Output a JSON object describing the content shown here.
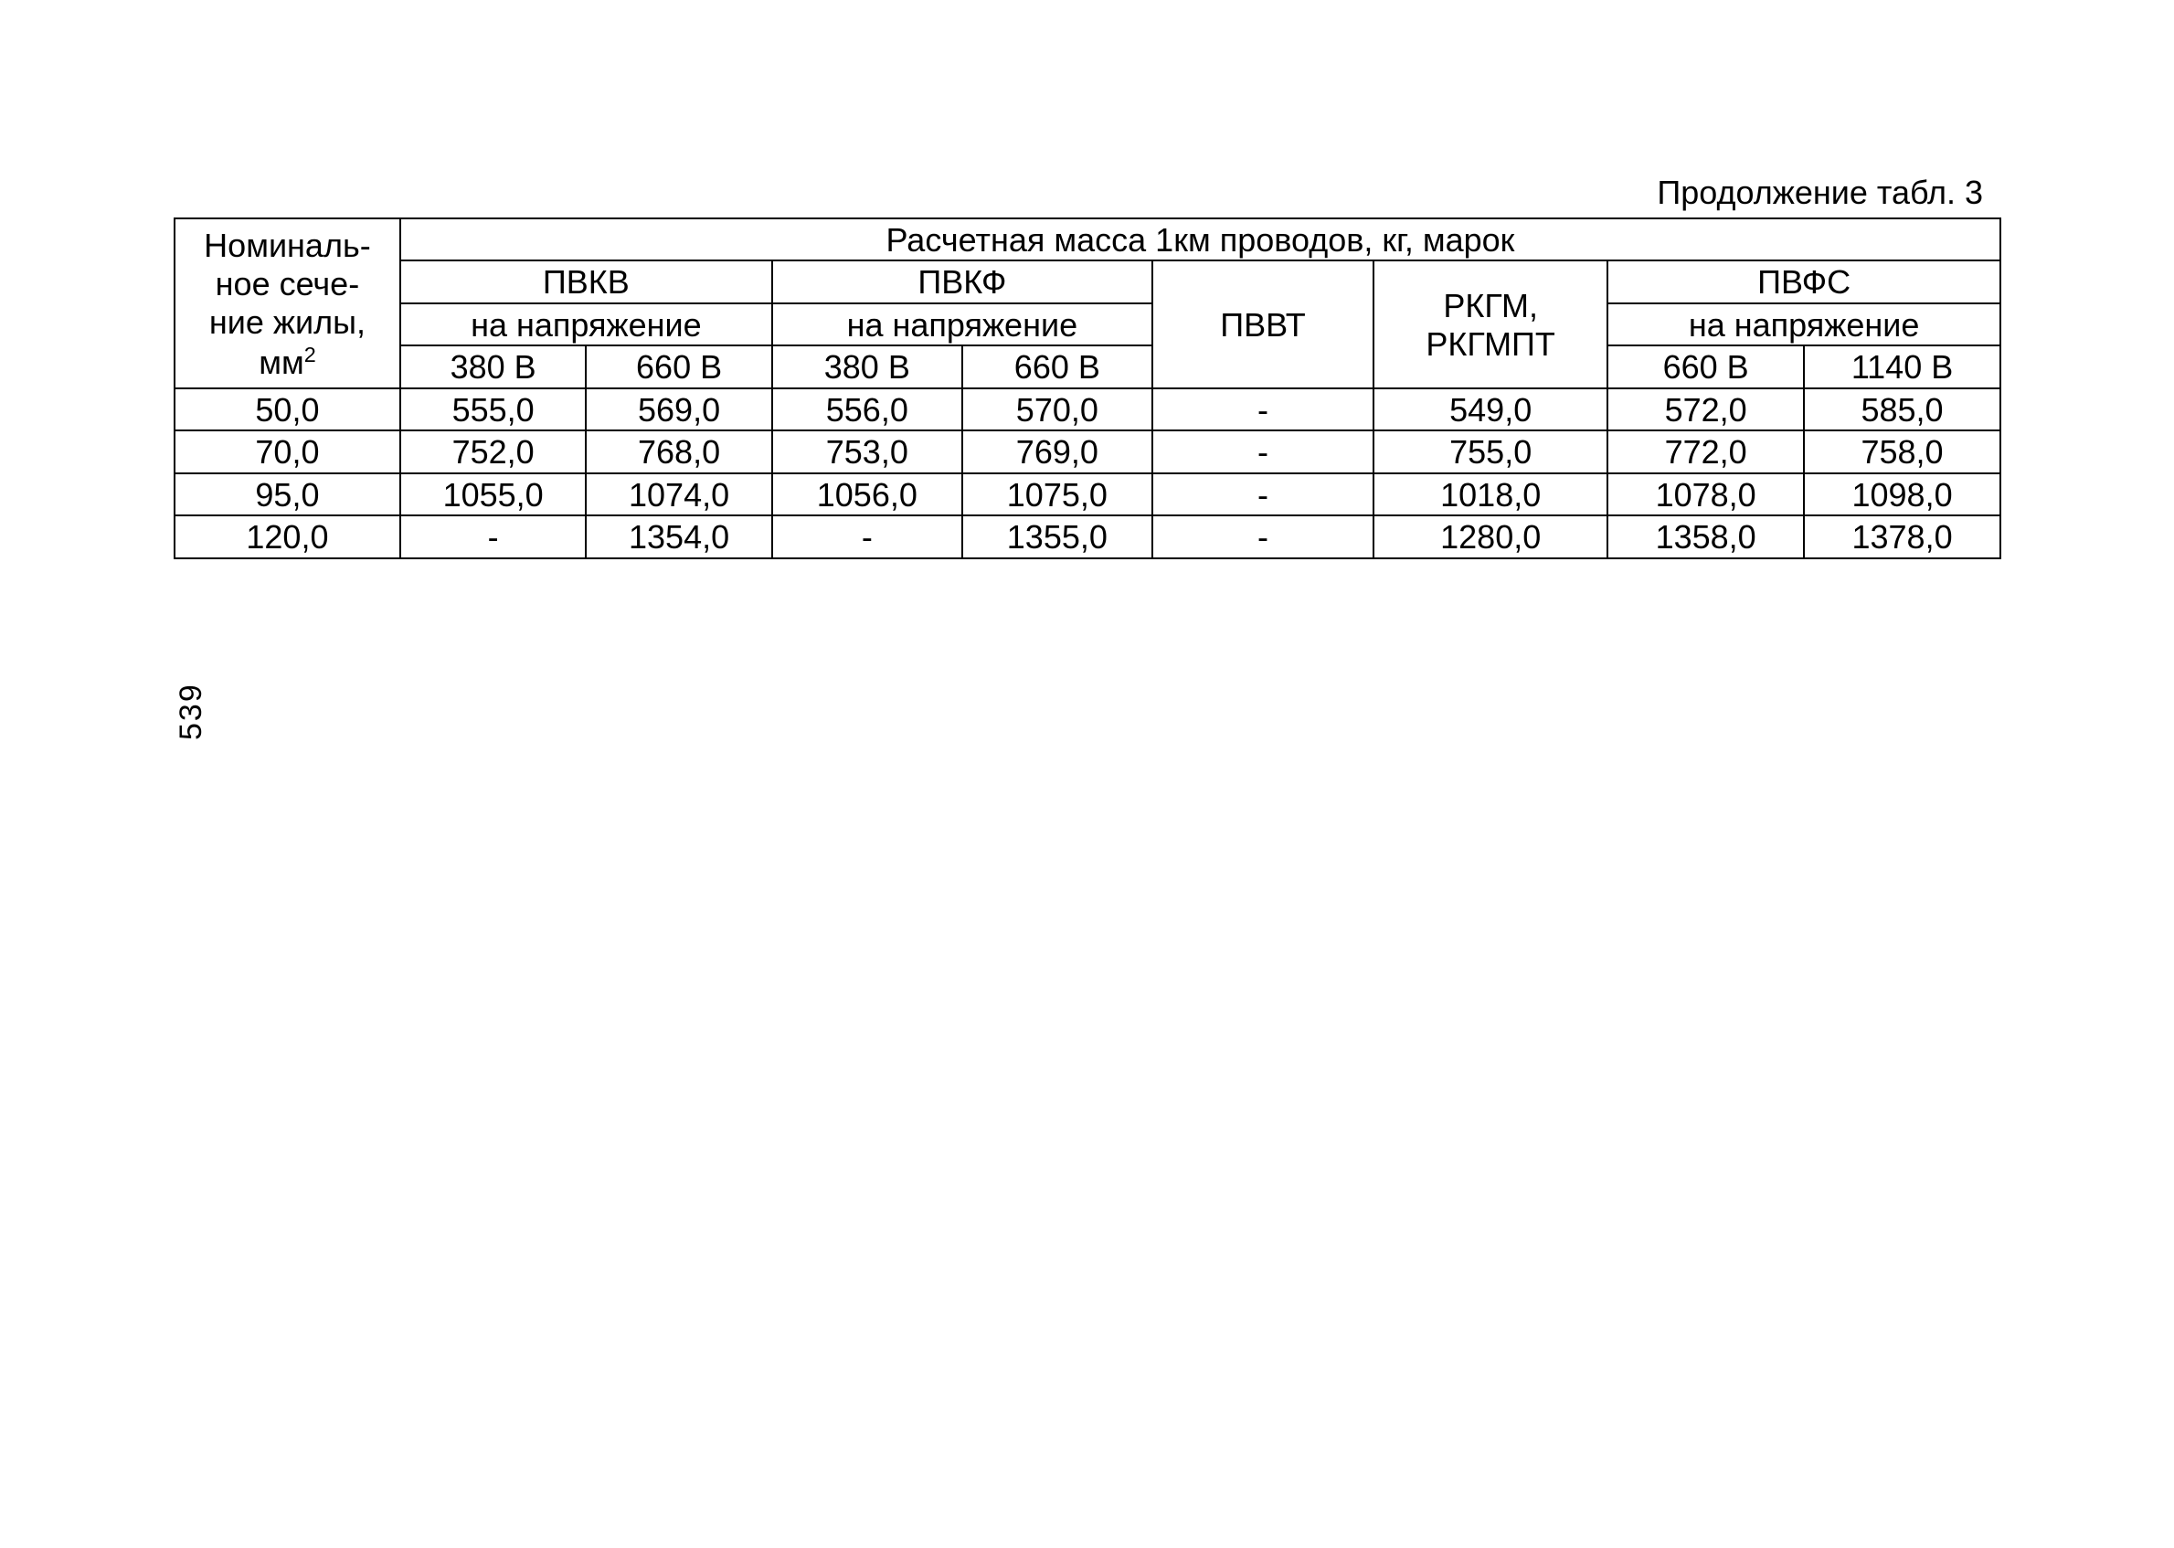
{
  "caption": "Продолжение табл. 3",
  "page_number": "539",
  "table": {
    "header": {
      "rowhead_line1": "Номиналь-",
      "rowhead_line2": "ное сече-",
      "rowhead_line3": "ние жилы,",
      "rowhead_mm": "мм",
      "rowhead_sup": "2",
      "top_span": "Расчетная масса 1км проводов, кг, марок",
      "g1_name": "ПВКВ",
      "g1_sub": "на напряжение",
      "g1_v1": "380 В",
      "g1_v2": "660 В",
      "g2_name": "ПВКФ",
      "g2_sub": "на напряжение",
      "g2_v1": "380 В",
      "g2_v2": "660 В",
      "g3_name": "ПВВТ",
      "g4_name_l1": "РКГМ,",
      "g4_name_l2": "РКГМПТ",
      "g5_name": "ПВФС",
      "g5_sub": "на напряжение",
      "g5_v1": "660 В",
      "g5_v2": "1140 В"
    },
    "rows": [
      {
        "c0": "50,0",
        "c1": "555,0",
        "c2": "569,0",
        "c3": "556,0",
        "c4": "570,0",
        "c5": "-",
        "c6": "549,0",
        "c7": "572,0",
        "c8": "585,0"
      },
      {
        "c0": "70,0",
        "c1": "752,0",
        "c2": "768,0",
        "c3": "753,0",
        "c4": "769,0",
        "c5": "-",
        "c6": "755,0",
        "c7": "772,0",
        "c8": "758,0"
      },
      {
        "c0": "95,0",
        "c1": "1055,0",
        "c2": "1074,0",
        "c3": "1056,0",
        "c4": "1075,0",
        "c5": "-",
        "c6": "1018,0",
        "c7": "1078,0",
        "c8": "1098,0"
      },
      {
        "c0": "120,0",
        "c1": "-",
        "c2": "1354,0",
        "c3": "-",
        "c4": "1355,0",
        "c5": "-",
        "c6": "1280,0",
        "c7": "1358,0",
        "c8": "1378,0"
      }
    ]
  },
  "style": {
    "font_size_pt": 27,
    "border_color": "#000000",
    "background": "#ffffff",
    "text_color": "#000000"
  }
}
